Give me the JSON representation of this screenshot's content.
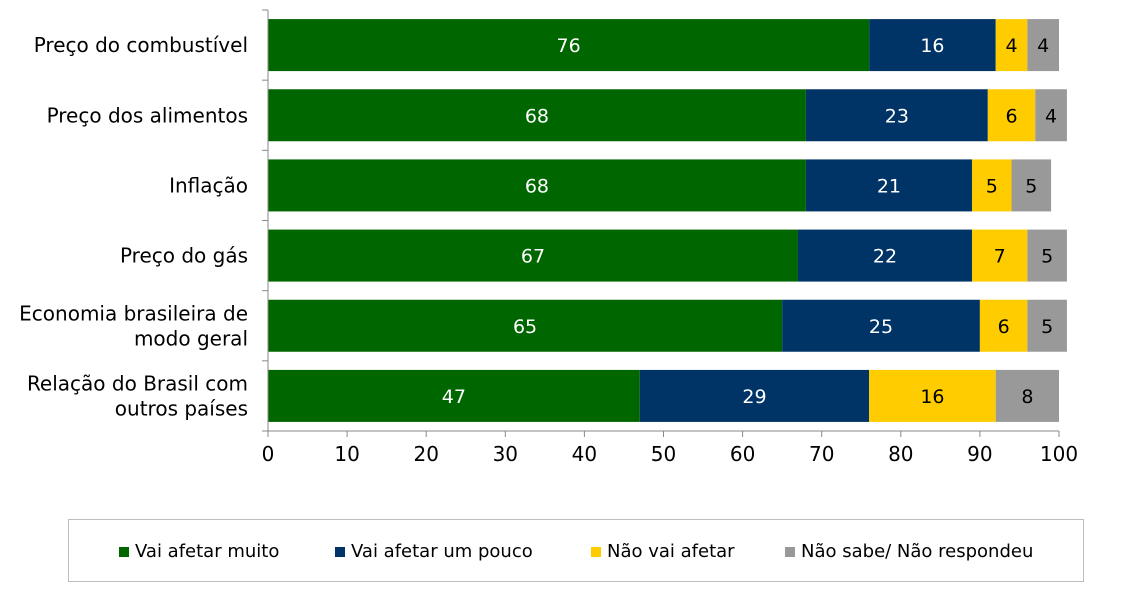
{
  "chart_data": {
    "type": "bar",
    "orientation": "horizontal",
    "stacked": true,
    "categories": [
      [
        "Preço do combustível"
      ],
      [
        "Preço dos alimentos"
      ],
      [
        "Inflação"
      ],
      [
        "Preço do gás"
      ],
      [
        "Economia brasileira de",
        "modo geral"
      ],
      [
        "Relação do Brasil com",
        "outros países"
      ]
    ],
    "series": [
      {
        "name": "Vai afetar muito",
        "color": "#006600",
        "label_color": "#ffffff",
        "values": [
          76,
          68,
          68,
          67,
          65,
          47
        ]
      },
      {
        "name": "Vai afetar um pouco",
        "color": "#003366",
        "label_color": "#ffffff",
        "values": [
          16,
          23,
          21,
          22,
          25,
          29
        ]
      },
      {
        "name": "Não vai afetar",
        "color": "#ffcc00",
        "label_color": "#000000",
        "values": [
          4,
          6,
          5,
          7,
          6,
          16
        ]
      },
      {
        "name": "Não sabe/ Não respondeu",
        "color": "#999999",
        "label_color": "#000000",
        "values": [
          4,
          4,
          5,
          5,
          5,
          8
        ]
      }
    ],
    "xlim": [
      0,
      100
    ],
    "xticks": [
      "0",
      "10",
      "20",
      "30",
      "40",
      "50",
      "60",
      "70",
      "80",
      "90",
      "100"
    ],
    "title": "",
    "xlabel": "",
    "ylabel": "",
    "legend_position": "bottom"
  }
}
